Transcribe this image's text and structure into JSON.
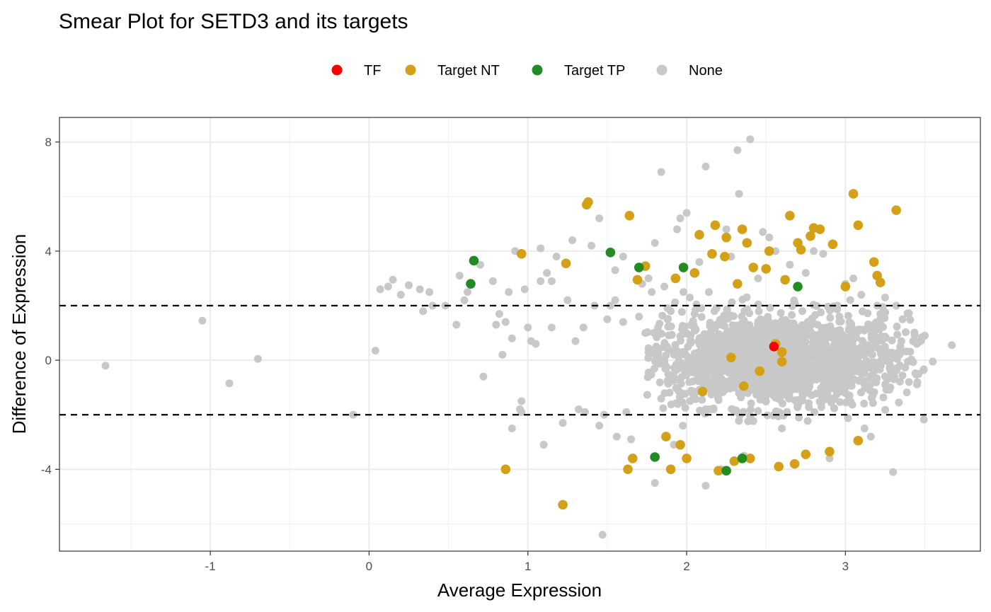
{
  "chart_data": {
    "type": "scatter",
    "title": "Smear Plot for SETD3 and its targets",
    "xlabel": "Average Expression",
    "ylabel": "Difference of Expression",
    "xlim": [
      -1.95,
      3.85
    ],
    "ylim": [
      -7.0,
      8.9
    ],
    "x_ticks": [
      -1,
      0,
      1,
      2,
      3
    ],
    "x_tick_labels": [
      "-1",
      "0",
      "1",
      "2",
      "3"
    ],
    "y_ticks": [
      -4,
      0,
      4,
      8
    ],
    "y_tick_labels": [
      "-4",
      "0",
      "4",
      "8"
    ],
    "grid": true,
    "legend_position": "top",
    "threshold_lines": [
      2,
      -2
    ],
    "legend": [
      {
        "label": "TF",
        "color": "#ff0000"
      },
      {
        "label": "Target NT",
        "color": "#d4a017"
      },
      {
        "label": "Target TP",
        "color": "#228b22"
      },
      {
        "label": "None",
        "color": "#c8c8c8"
      }
    ],
    "series": [
      {
        "name": "None",
        "color": "#c8c8c8",
        "points": [
          [
            -1.66,
            -0.2
          ],
          [
            -1.05,
            1.45
          ],
          [
            -0.88,
            -0.85
          ],
          [
            -0.7,
            0.05
          ],
          [
            -0.1,
            -2.0
          ],
          [
            0.04,
            0.35
          ],
          [
            0.07,
            2.6
          ],
          [
            0.12,
            2.7
          ],
          [
            0.15,
            2.95
          ],
          [
            0.2,
            2.4
          ],
          [
            0.25,
            2.75
          ],
          [
            0.32,
            2.6
          ],
          [
            0.34,
            1.8
          ],
          [
            0.38,
            2.5
          ],
          [
            0.4,
            2.0
          ],
          [
            0.48,
            2.0
          ],
          [
            0.55,
            1.3
          ],
          [
            0.57,
            3.1
          ],
          [
            0.6,
            2.2
          ],
          [
            0.62,
            2.5
          ],
          [
            0.7,
            3.5
          ],
          [
            0.72,
            -0.6
          ],
          [
            0.78,
            2.9
          ],
          [
            0.8,
            1.3
          ],
          [
            0.82,
            1.7
          ],
          [
            0.84,
            0.2
          ],
          [
            0.86,
            1.4
          ],
          [
            0.88,
            2.5
          ],
          [
            0.9,
            0.8
          ],
          [
            0.9,
            -2.5
          ],
          [
            0.92,
            4.0
          ],
          [
            0.95,
            -1.8
          ],
          [
            0.96,
            -1.5
          ],
          [
            0.96,
            -1.9
          ],
          [
            0.98,
            2.6
          ],
          [
            1.0,
            1.2
          ],
          [
            1.02,
            0.7
          ],
          [
            1.05,
            0.6
          ],
          [
            1.08,
            4.1
          ],
          [
            1.08,
            2.9
          ],
          [
            1.1,
            -3.1
          ],
          [
            1.12,
            3.2
          ],
          [
            1.15,
            2.9
          ],
          [
            1.15,
            1.2
          ],
          [
            1.18,
            3.8
          ],
          [
            1.22,
            -2.3
          ],
          [
            1.25,
            2.2
          ],
          [
            1.28,
            4.4
          ],
          [
            1.3,
            0.7
          ],
          [
            1.32,
            -1.8
          ],
          [
            1.35,
            1.2
          ],
          [
            1.36,
            -1.9
          ],
          [
            1.4,
            4.2
          ],
          [
            1.42,
            2.0
          ],
          [
            1.45,
            5.2
          ],
          [
            1.45,
            -2.4
          ],
          [
            1.47,
            -6.4
          ],
          [
            1.48,
            -2.0
          ],
          [
            1.5,
            1.5
          ],
          [
            1.52,
            2.0
          ],
          [
            1.55,
            3.3
          ],
          [
            1.55,
            2.2
          ],
          [
            1.56,
            -2.8
          ],
          [
            1.6,
            1.4
          ],
          [
            1.6,
            3.8
          ],
          [
            1.62,
            -1.9
          ],
          [
            1.65,
            -2.9
          ],
          [
            1.7,
            1.6
          ],
          [
            1.72,
            2.8
          ],
          [
            1.74,
            1.0
          ],
          [
            1.76,
            3.0
          ],
          [
            1.78,
            2.5
          ],
          [
            1.8,
            4.3
          ],
          [
            1.8,
            -4.5
          ],
          [
            1.82,
            1.2
          ],
          [
            1.84,
            6.9
          ],
          [
            1.86,
            2.7
          ],
          [
            1.88,
            1.5
          ],
          [
            1.9,
            1.8
          ],
          [
            1.92,
            -3.1
          ],
          [
            1.94,
            4.8
          ],
          [
            1.96,
            5.2
          ],
          [
            1.98,
            2.5
          ],
          [
            2.0,
            5.4
          ],
          [
            2.02,
            2.3
          ],
          [
            2.05,
            1.7
          ],
          [
            2.08,
            3.6
          ],
          [
            2.12,
            7.1
          ],
          [
            2.12,
            -4.6
          ],
          [
            2.14,
            2.5
          ],
          [
            2.18,
            1.2
          ],
          [
            2.22,
            -4.0
          ],
          [
            2.25,
            4.8
          ],
          [
            2.28,
            3.8
          ],
          [
            2.32,
            7.7
          ],
          [
            2.33,
            6.1
          ],
          [
            2.36,
            -3.5
          ],
          [
            2.4,
            8.1
          ],
          [
            2.45,
            3.0
          ],
          [
            2.48,
            4.7
          ],
          [
            2.52,
            4.5
          ],
          [
            2.56,
            4.0
          ],
          [
            2.6,
            -2.5
          ],
          [
            2.65,
            3.5
          ],
          [
            2.7,
            4.3
          ],
          [
            2.75,
            3.2
          ],
          [
            2.8,
            4.0
          ],
          [
            2.86,
            3.9
          ],
          [
            2.9,
            -3.6
          ],
          [
            2.95,
            2.0
          ],
          [
            3.0,
            2.8
          ],
          [
            3.05,
            3.0
          ],
          [
            3.1,
            2.4
          ],
          [
            3.12,
            -2.5
          ],
          [
            3.16,
            -2.8
          ],
          [
            3.2,
            2.0
          ],
          [
            3.22,
            1.7
          ],
          [
            3.25,
            2.3
          ],
          [
            3.3,
            -4.1
          ],
          [
            3.32,
            2.0
          ],
          [
            3.36,
            1.5
          ],
          [
            3.4,
            -0.8
          ],
          [
            3.45,
            0.6
          ],
          [
            3.5,
            0.9
          ],
          [
            3.55,
            -0.05
          ],
          [
            3.67,
            0.55
          ]
        ]
      },
      {
        "name": "Target NT",
        "color": "#d4a017",
        "points": [
          [
            0.86,
            -4.0
          ],
          [
            0.96,
            3.9
          ],
          [
            1.22,
            -5.3
          ],
          [
            1.24,
            3.55
          ],
          [
            1.37,
            5.7
          ],
          [
            1.38,
            5.8
          ],
          [
            1.63,
            -4.0
          ],
          [
            1.64,
            5.3
          ],
          [
            1.66,
            -3.6
          ],
          [
            1.69,
            2.95
          ],
          [
            1.74,
            3.45
          ],
          [
            1.87,
            -2.8
          ],
          [
            1.9,
            -4.0
          ],
          [
            1.93,
            3.0
          ],
          [
            1.96,
            -3.1
          ],
          [
            2.0,
            -3.6
          ],
          [
            2.05,
            3.2
          ],
          [
            2.08,
            4.6
          ],
          [
            2.1,
            -1.15
          ],
          [
            2.16,
            3.9
          ],
          [
            2.18,
            4.95
          ],
          [
            2.2,
            -4.05
          ],
          [
            2.24,
            3.8
          ],
          [
            2.25,
            4.5
          ],
          [
            2.28,
            0.1
          ],
          [
            2.3,
            -3.7
          ],
          [
            2.32,
            2.8
          ],
          [
            2.35,
            4.8
          ],
          [
            2.36,
            -0.95
          ],
          [
            2.38,
            4.3
          ],
          [
            2.4,
            -3.6
          ],
          [
            2.42,
            3.4
          ],
          [
            2.46,
            -0.4
          ],
          [
            2.5,
            3.35
          ],
          [
            2.52,
            4.0
          ],
          [
            2.56,
            0.6
          ],
          [
            2.58,
            -3.9
          ],
          [
            2.6,
            -0.05
          ],
          [
            2.6,
            0.3
          ],
          [
            2.62,
            2.95
          ],
          [
            2.65,
            5.3
          ],
          [
            2.68,
            -3.8
          ],
          [
            2.7,
            4.3
          ],
          [
            2.72,
            4.05
          ],
          [
            2.75,
            -3.45
          ],
          [
            2.78,
            4.55
          ],
          [
            2.8,
            4.85
          ],
          [
            2.84,
            4.8
          ],
          [
            2.9,
            -3.35
          ],
          [
            2.92,
            4.25
          ],
          [
            3.0,
            2.7
          ],
          [
            3.05,
            6.1
          ],
          [
            3.08,
            -2.95
          ],
          [
            3.08,
            4.95
          ],
          [
            3.18,
            3.6
          ],
          [
            3.2,
            3.1
          ],
          [
            3.22,
            2.85
          ],
          [
            3.32,
            5.5
          ]
        ]
      },
      {
        "name": "Target TP",
        "color": "#228b22",
        "points": [
          [
            0.64,
            2.8
          ],
          [
            0.66,
            3.65
          ],
          [
            1.52,
            3.95
          ],
          [
            1.7,
            3.4
          ],
          [
            1.8,
            -3.55
          ],
          [
            1.98,
            3.4
          ],
          [
            2.25,
            -4.05
          ],
          [
            2.35,
            -3.6
          ],
          [
            2.7,
            2.7
          ]
        ]
      },
      {
        "name": "TF",
        "color": "#ff0000",
        "points": [
          [
            2.55,
            0.5
          ]
        ]
      }
    ]
  }
}
